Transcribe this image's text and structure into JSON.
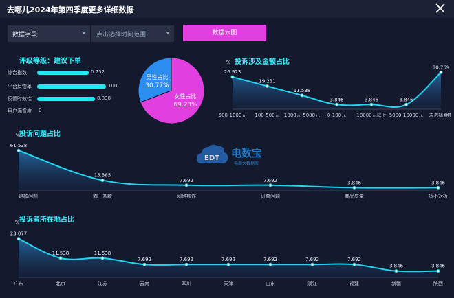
{
  "header": {
    "title": "去哪儿2024年第四季度更多详细数据"
  },
  "filters": {
    "field_select": "数据字段",
    "time_range_placeholder": "点击选择时间范围",
    "cloud_button": "数据云图"
  },
  "rating": {
    "title": "评级等级：建议下单",
    "items": [
      {
        "label": "综合指数",
        "value": "0.752",
        "fraction": 0.752
      },
      {
        "label": "平台反馈率",
        "value": "100",
        "fraction": 1.0
      },
      {
        "label": "反馈时效性",
        "value": "0.838",
        "fraction": 0.838
      },
      {
        "label": "用户满意度",
        "value": "0",
        "fraction": 0
      }
    ]
  },
  "watermark": {
    "brand": "电数宝",
    "sub": "电商大数据库",
    "logo_text": "EDT"
  },
  "colors": {
    "background": "#141a2e",
    "accent_cyan": "#22e8f2",
    "title_cyan": "#3ef0ff",
    "magenta": "#e23fe0",
    "blue": "#2c8df0"
  },
  "chart_data": [
    {
      "id": "gender",
      "type": "pie",
      "slices": [
        {
          "name": "男性占比",
          "value": 30.77,
          "label": "30.77%",
          "color": "#2c8df0"
        },
        {
          "name": "女性占比",
          "value": 69.23,
          "label": "69.23%",
          "color": "#e23fe0"
        }
      ]
    },
    {
      "id": "amount",
      "type": "area",
      "title": "投诉涉及金额占比",
      "ylabel": "%",
      "categories": [
        "500-1000元",
        "100-500元",
        "1000元-5000元",
        "0-100元",
        "10000元以上",
        "5000-10000元",
        "未选择金额"
      ],
      "values": [
        26.923,
        19.231,
        11.538,
        3.846,
        3.846,
        3.846,
        30.769
      ],
      "labels": [
        "26.923",
        "19.231",
        "11.538",
        "3.846",
        "3.846",
        "3.846",
        "30.769"
      ],
      "ylim": [
        0,
        35
      ]
    },
    {
      "id": "problem",
      "type": "area",
      "title": "投诉问题占比",
      "ylabel": "%",
      "categories": [
        "退款问题",
        "霸王条款",
        "网络欺诈",
        "订单问题",
        "商品质量",
        "货不对板"
      ],
      "values": [
        61.538,
        15.385,
        7.692,
        7.692,
        3.846,
        3.846
      ],
      "labels": [
        "61.538",
        "15.385",
        "7.692",
        "7.692",
        "3.846",
        "3.846"
      ],
      "ylim": [
        0,
        65
      ]
    },
    {
      "id": "region",
      "type": "area",
      "title": "投诉者所在地占比",
      "ylabel": "%",
      "categories": [
        "广东",
        "北京",
        "江苏",
        "云南",
        "四川",
        "天津",
        "山东",
        "浙江",
        "福建",
        "新疆",
        "陕西"
      ],
      "values": [
        23.077,
        11.538,
        11.538,
        7.692,
        7.692,
        7.692,
        7.692,
        7.692,
        7.692,
        3.846,
        3.846
      ],
      "labels": [
        "23.077",
        "11.538",
        "11.538",
        "7.692",
        "7.692",
        "7.692",
        "7.692",
        "7.692",
        "7.692",
        "3.846",
        "3.846"
      ],
      "ylim": [
        0,
        25
      ]
    }
  ]
}
